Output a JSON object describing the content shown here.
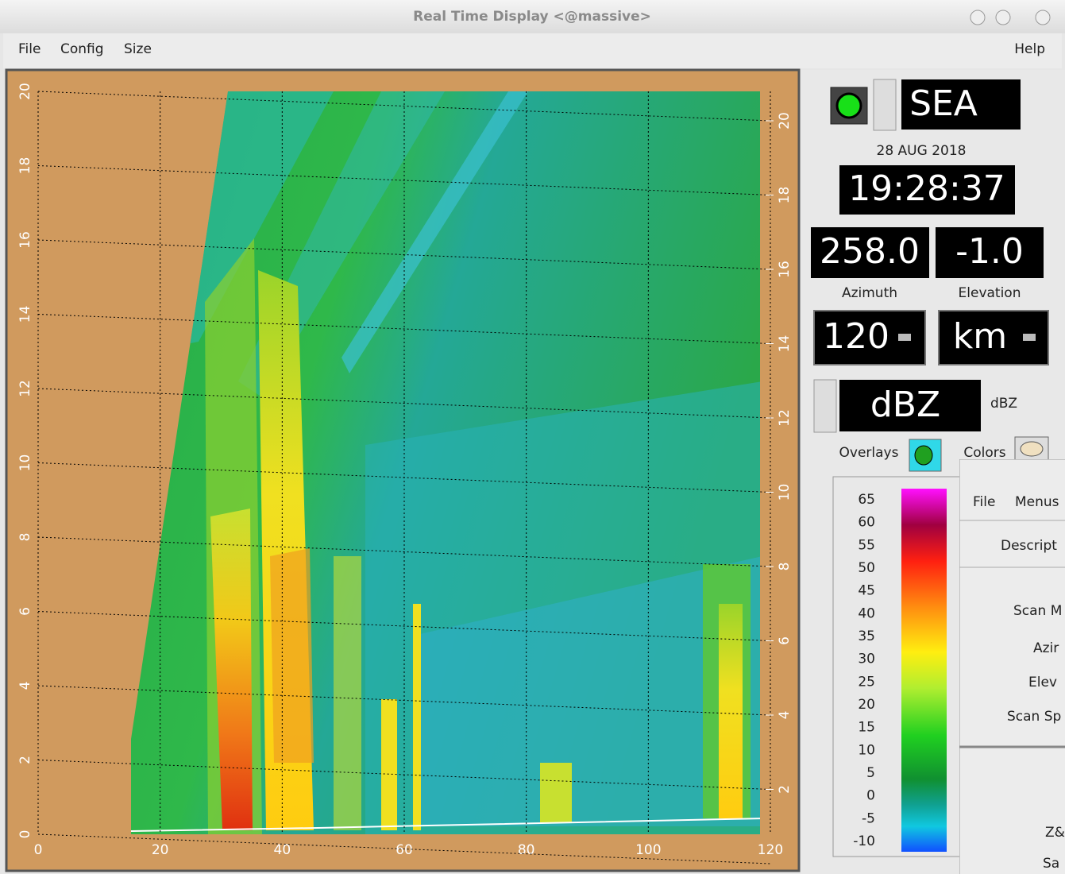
{
  "window": {
    "title": "Real Time Display <@massive>"
  },
  "menu": {
    "left": [
      "File",
      "Config",
      "Size"
    ],
    "right": "Help"
  },
  "plot": {
    "x_ticks": [
      0,
      20,
      40,
      60,
      80,
      100,
      120
    ],
    "y_ticks_left": [
      0,
      2,
      4,
      6,
      8,
      10,
      12,
      14,
      16,
      18,
      20
    ],
    "y_ticks_right": [
      2,
      4,
      6,
      8,
      10,
      12,
      14,
      16,
      18,
      20
    ]
  },
  "panel": {
    "station": "SEA",
    "date": "28 AUG 2018",
    "time": "19:28:37",
    "azimuth": "258.0",
    "elevation": "-1.0",
    "azimuth_label": "Azimuth",
    "elevation_label": "Elevation",
    "range": "120",
    "units": "km",
    "field": "dBZ",
    "field_units": "dBZ",
    "overlays": "Overlays",
    "colors": "Colors",
    "scale": [
      65,
      60,
      55,
      50,
      45,
      40,
      35,
      30,
      25,
      20,
      15,
      10,
      5,
      0,
      -5,
      -10
    ]
  },
  "sub_window": {
    "menu": [
      "File",
      "Menus"
    ],
    "labels": [
      "Descript",
      "Scan M",
      "Azir",
      "Elev",
      "Scan Sp",
      "Z&",
      "Sa"
    ]
  }
}
